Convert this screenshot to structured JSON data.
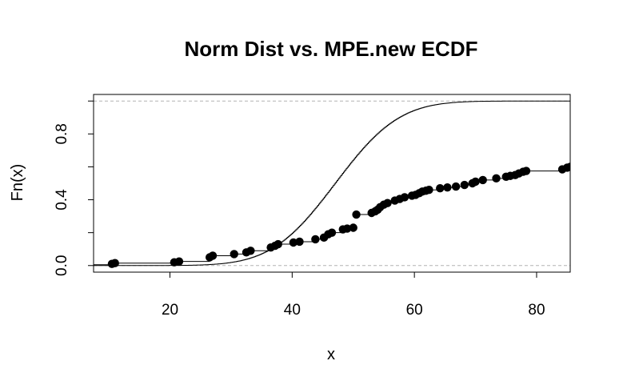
{
  "chart_data": {
    "type": "line",
    "title": "Norm Dist vs. MPE.new ECDF",
    "xlabel": "x",
    "ylabel": "Fn(x)",
    "xlim": [
      7.5,
      85.5
    ],
    "ylim": [
      -0.04,
      1.04
    ],
    "x_ticks": [
      20,
      40,
      60,
      80
    ],
    "y_ticks": [
      0.0,
      0.4,
      0.8
    ],
    "y_tick_labels": [
      "0.0",
      "0.4",
      "0.8"
    ],
    "y_minor_ticks": [
      0.2,
      0.6,
      1.0
    ],
    "reference_lines": [
      0,
      1
    ],
    "grid": false,
    "legend": "none",
    "colors": {
      "line": "#000000",
      "points": "#000000",
      "reference": "#b4b4b4"
    },
    "series": [
      {
        "kind": "normal-cdf-step",
        "mean": 47,
        "sd": 8.2
      },
      {
        "kind": "ecdf-points",
        "x": [
          10.5,
          11.0,
          20.7,
          21.5,
          26.5,
          27.0,
          30.5,
          32.5,
          33.2,
          36.5,
          37.2,
          37.7,
          40.2,
          41.2,
          43.8,
          45.2,
          45.9,
          46.5,
          48.3,
          49.0,
          50.0,
          50.5,
          53.0,
          53.6,
          54.0,
          54.4,
          55.0,
          55.6,
          56.8,
          57.6,
          58.4,
          59.6,
          60.2,
          60.8,
          61.3,
          61.9,
          62.4,
          64.2,
          65.4,
          66.8,
          68.2,
          69.5,
          70.0,
          71.2,
          73.4,
          75.0,
          75.7,
          76.5,
          77.1,
          77.8,
          78.3,
          84.2,
          85.0,
          85.5
        ],
        "y": [
          0.01,
          0.015,
          0.02,
          0.025,
          0.05,
          0.06,
          0.07,
          0.08,
          0.09,
          0.11,
          0.12,
          0.13,
          0.14,
          0.145,
          0.16,
          0.17,
          0.19,
          0.2,
          0.22,
          0.225,
          0.23,
          0.31,
          0.32,
          0.33,
          0.34,
          0.355,
          0.37,
          0.38,
          0.395,
          0.405,
          0.415,
          0.425,
          0.43,
          0.44,
          0.45,
          0.455,
          0.46,
          0.47,
          0.475,
          0.48,
          0.49,
          0.5,
          0.51,
          0.52,
          0.53,
          0.54,
          0.545,
          0.55,
          0.56,
          0.57,
          0.575,
          0.585,
          0.595,
          0.6
        ]
      }
    ]
  }
}
